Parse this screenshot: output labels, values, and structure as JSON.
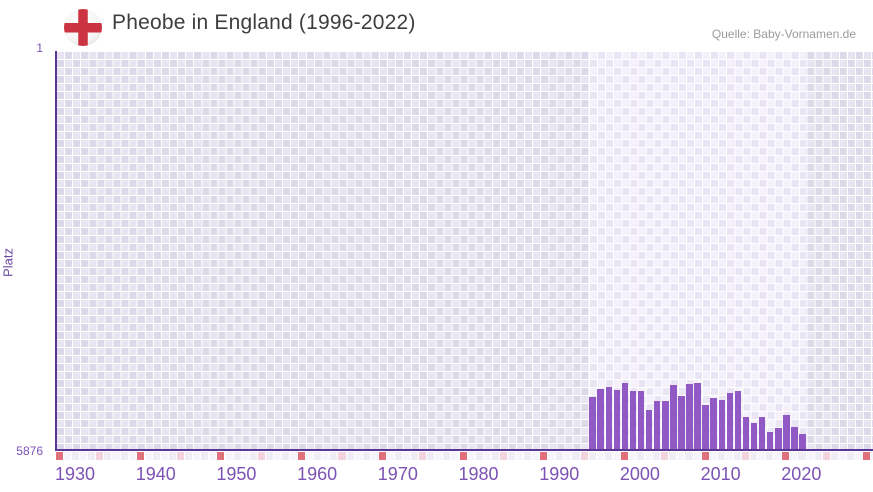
{
  "header": {
    "title": "Pheobe in England (1996-2022)",
    "source": "Quelle: Baby-Vornamen.de",
    "flag_icon": "england-flag-icon"
  },
  "axes": {
    "y_label": "Platz",
    "y_tick_top": "1",
    "y_tick_bottom": "5876",
    "x_tick_labels": [
      1930,
      1940,
      1950,
      1960,
      1970,
      1980,
      1990,
      2000,
      2010,
      2020
    ]
  },
  "colors": {
    "bar": "#9059c3",
    "axis_line": "#5a3794",
    "tick_decade": "#e0717c",
    "tick_half_decade": "#f2d3dd",
    "strip_even": "#efecf6",
    "strip_odd": "#f7f5fb",
    "flag_red": "#cb3340",
    "label_purple": "#7c52b5"
  },
  "chart_data": {
    "type": "bar",
    "title": "Pheobe in England (1996-2022)",
    "xlabel": "",
    "ylabel": "Platz",
    "ylim": [
      1,
      5876
    ],
    "y_axis_inverted": true,
    "x_axis_range_shown": [
      1930,
      2031
    ],
    "grid": true,
    "highlight_band_years": [
      1996,
      2022
    ],
    "categories": [
      1996,
      1997,
      1998,
      1999,
      2000,
      2001,
      2002,
      2003,
      2004,
      2005,
      2006,
      2007,
      2008,
      2009,
      2010,
      2011,
      2012,
      2013,
      2014,
      2015,
      2016,
      2017,
      2018,
      2019,
      2020,
      2021,
      2022
    ],
    "values": [
      5080,
      4970,
      4940,
      4980,
      4880,
      5000,
      5000,
      5270,
      5140,
      5140,
      4900,
      5070,
      4890,
      4880,
      5200,
      5100,
      5130,
      5020,
      5000,
      5370,
      5470,
      5370,
      5590,
      5540,
      5340,
      5520,
      5630
    ]
  }
}
